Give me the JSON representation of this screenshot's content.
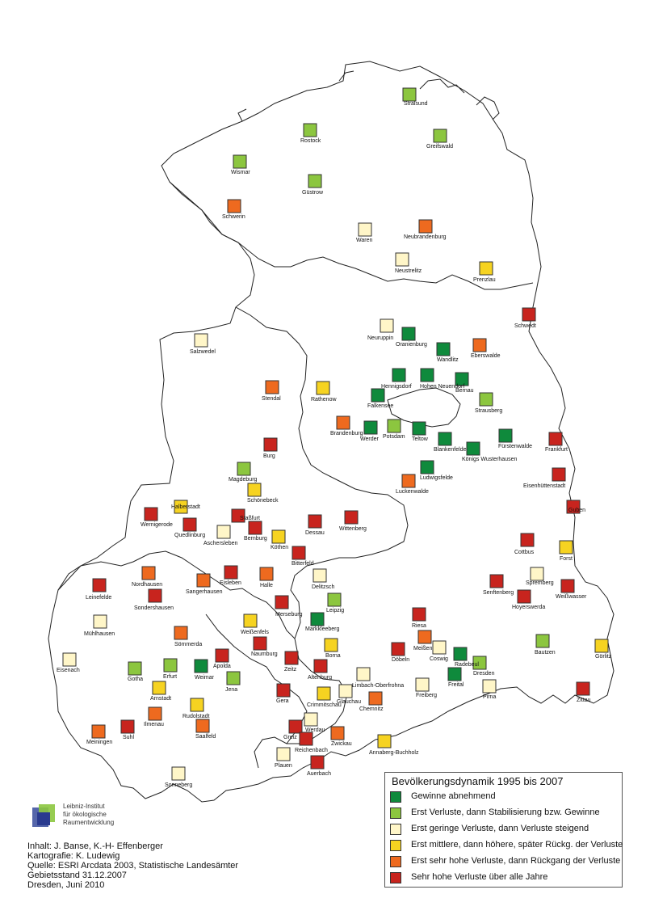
{
  "colors": {
    "c1": "#0f8a3c",
    "c2": "#8cc63f",
    "c3": "#fff6c8",
    "c4": "#f6d321",
    "c5": "#ee6a1f",
    "c6": "#c8241e",
    "border": "#333333"
  },
  "legend": {
    "title": "Bevölkerungsdynamik 1995 bis 2007",
    "items": [
      {
        "cls": "c1",
        "label": "Gewinne abnehmend"
      },
      {
        "cls": "c2",
        "label": "Erst Verluste, dann Stabilisierung bzw. Gewinne"
      },
      {
        "cls": "c3",
        "label": "Erst geringe Verluste, dann Verluste steigend"
      },
      {
        "cls": "c4",
        "label": "Erst mittlere, dann höhere, später Rückg. der Verluste"
      },
      {
        "cls": "c5",
        "label": "Erst sehr hohe Verluste, dann Rückgang der Verluste"
      },
      {
        "cls": "c6",
        "label": "Sehr hohe Verluste über alle Jahre"
      }
    ]
  },
  "credits": [
    "Inhalt: J. Banse, K.-H- Effenberger",
    "Kartografie:  K. Ludewig",
    "Quelle: ESRI Arcdata 2003, Statistische Landesämter",
    "Gebietsstand 31.12.2007",
    "Dresden, Juni 2010"
  ],
  "logo": {
    "lines": [
      "Leibniz-Institut",
      "für ökologische",
      "Raumentwicklung"
    ]
  },
  "cities": [
    {
      "name": "Stralsund",
      "cls": "c2"
    },
    {
      "name": "Rostock",
      "cls": "c2"
    },
    {
      "name": "Greifswald",
      "cls": "c2"
    },
    {
      "name": "Wismar",
      "cls": "c2"
    },
    {
      "name": "Güstrow",
      "cls": "c2"
    },
    {
      "name": "Schwerin",
      "cls": "c5"
    },
    {
      "name": "Waren",
      "cls": "c3"
    },
    {
      "name": "Neubrandenburg",
      "cls": "c5"
    },
    {
      "name": "Neustrelitz",
      "cls": "c3"
    },
    {
      "name": "Prenzlau",
      "cls": "c4"
    },
    {
      "name": "Schwedt",
      "cls": "c6"
    },
    {
      "name": "Neuruppin",
      "cls": "c3"
    },
    {
      "name": "Oranienburg",
      "cls": "c1"
    },
    {
      "name": "Wandlitz",
      "cls": "c1"
    },
    {
      "name": "Eberswalde",
      "cls": "c5"
    },
    {
      "name": "Salzwedel",
      "cls": "c3"
    },
    {
      "name": "Hennigsdorf",
      "cls": "c1"
    },
    {
      "name": "Hohen Neuendorf",
      "cls": "c1"
    },
    {
      "name": "Bernau",
      "cls": "c1"
    },
    {
      "name": "Stendal",
      "cls": "c5"
    },
    {
      "name": "Rathenow",
      "cls": "c4"
    },
    {
      "name": "Falkensee",
      "cls": "c1"
    },
    {
      "name": "Strausberg",
      "cls": "c2"
    },
    {
      "name": "Brandenburg",
      "cls": "c5"
    },
    {
      "name": "Werder",
      "cls": "c1"
    },
    {
      "name": "Potsdam",
      "cls": "c2"
    },
    {
      "name": "Teltow",
      "cls": "c1"
    },
    {
      "name": "Fürstenwalde",
      "cls": "c1"
    },
    {
      "name": "Blankenfelde",
      "cls": "c1"
    },
    {
      "name": "Königs Wusterhausen",
      "cls": "c1"
    },
    {
      "name": "Frankfurt",
      "cls": "c6"
    },
    {
      "name": "Burg",
      "cls": "c6"
    },
    {
      "name": "Ludwigsfelde",
      "cls": "c1"
    },
    {
      "name": "Magdeburg",
      "cls": "c2"
    },
    {
      "name": "Luckenwalde",
      "cls": "c5"
    },
    {
      "name": "Eisenhüttenstadt",
      "cls": "c6"
    },
    {
      "name": "Schönebeck",
      "cls": "c4"
    },
    {
      "name": "Halberstadt",
      "cls": "c4"
    },
    {
      "name": "Staßfurt",
      "cls": "c6"
    },
    {
      "name": "Wernigerode",
      "cls": "c6"
    },
    {
      "name": "Quedlinburg",
      "cls": "c6"
    },
    {
      "name": "Dessau",
      "cls": "c6"
    },
    {
      "name": "Wittenberg",
      "cls": "c6"
    },
    {
      "name": "Guben",
      "cls": "c6"
    },
    {
      "name": "Aschersleben",
      "cls": "c3"
    },
    {
      "name": "Bernburg",
      "cls": "c6"
    },
    {
      "name": "Köthen",
      "cls": "c4"
    },
    {
      "name": "Cottbus",
      "cls": "c6"
    },
    {
      "name": "Bitterfeld",
      "cls": "c6"
    },
    {
      "name": "Forst",
      "cls": "c4"
    },
    {
      "name": "Nordhausen",
      "cls": "c5"
    },
    {
      "name": "Eisleben",
      "cls": "c6"
    },
    {
      "name": "Halle",
      "cls": "c5"
    },
    {
      "name": "Delitzsch",
      "cls": "c3"
    },
    {
      "name": "Leinefelde",
      "cls": "c6"
    },
    {
      "name": "Sangerhausen",
      "cls": "c5"
    },
    {
      "name": "Senftenberg",
      "cls": "c6"
    },
    {
      "name": "Spremberg",
      "cls": "c3"
    },
    {
      "name": "Weißwasser",
      "cls": "c6"
    },
    {
      "name": "Sondershausen",
      "cls": "c6"
    },
    {
      "name": "Leipzig",
      "cls": "c2"
    },
    {
      "name": "Hoyerswerda",
      "cls": "c6"
    },
    {
      "name": "Merseburg",
      "cls": "c6"
    },
    {
      "name": "Mühlhausen",
      "cls": "c3"
    },
    {
      "name": "Riesa",
      "cls": "c6"
    },
    {
      "name": "Markkleeberg",
      "cls": "c1"
    },
    {
      "name": "Weißenfels",
      "cls": "c4"
    },
    {
      "name": "Sömmerda",
      "cls": "c5"
    },
    {
      "name": "Meißen",
      "cls": "c5"
    },
    {
      "name": "Naumburg",
      "cls": "c6"
    },
    {
      "name": "Borna",
      "cls": "c4"
    },
    {
      "name": "Bautzen",
      "cls": "c2"
    },
    {
      "name": "Eisenach",
      "cls": "c3"
    },
    {
      "name": "Apolda",
      "cls": "c6"
    },
    {
      "name": "Coswig",
      "cls": "c3"
    },
    {
      "name": "Döbeln",
      "cls": "c6"
    },
    {
      "name": "Radebeul",
      "cls": "c1"
    },
    {
      "name": "Görlitz",
      "cls": "c4"
    },
    {
      "name": "Zeitz",
      "cls": "c6"
    },
    {
      "name": "Gotha",
      "cls": "c2"
    },
    {
      "name": "Erfurt",
      "cls": "c2"
    },
    {
      "name": "Weimar",
      "cls": "c1"
    },
    {
      "name": "Altenburg",
      "cls": "c6"
    },
    {
      "name": "Dresden",
      "cls": "c2"
    },
    {
      "name": "Jena",
      "cls": "c2"
    },
    {
      "name": "Limbach-Oberfrohna",
      "cls": "c3"
    },
    {
      "name": "Freital",
      "cls": "c1"
    },
    {
      "name": "Freiberg",
      "cls": "c3"
    },
    {
      "name": "Pirna",
      "cls": "c3"
    },
    {
      "name": "Arnstadt",
      "cls": "c4"
    },
    {
      "name": "Gera",
      "cls": "c6"
    },
    {
      "name": "Zittau",
      "cls": "c6"
    },
    {
      "name": "Glauchau",
      "cls": "c3"
    },
    {
      "name": "Crimmitschau",
      "cls": "c4"
    },
    {
      "name": "Chemnitz",
      "cls": "c5"
    },
    {
      "name": "Rudolstadt",
      "cls": "c4"
    },
    {
      "name": "Ilmenau",
      "cls": "c5"
    },
    {
      "name": "Werdau",
      "cls": "c3"
    },
    {
      "name": "Meiningen",
      "cls": "c5"
    },
    {
      "name": "Suhl",
      "cls": "c6"
    },
    {
      "name": "Saalfeld",
      "cls": "c5"
    },
    {
      "name": "Greiz",
      "cls": "c6"
    },
    {
      "name": "Zwickau",
      "cls": "c5"
    },
    {
      "name": "Reichenbach",
      "cls": "c6"
    },
    {
      "name": "Annaberg-Buchholz",
      "cls": "c4"
    },
    {
      "name": "Plauen",
      "cls": "c3"
    },
    {
      "name": "Auerbach",
      "cls": "c6"
    },
    {
      "name": "Sonneberg",
      "cls": "c3"
    }
  ]
}
